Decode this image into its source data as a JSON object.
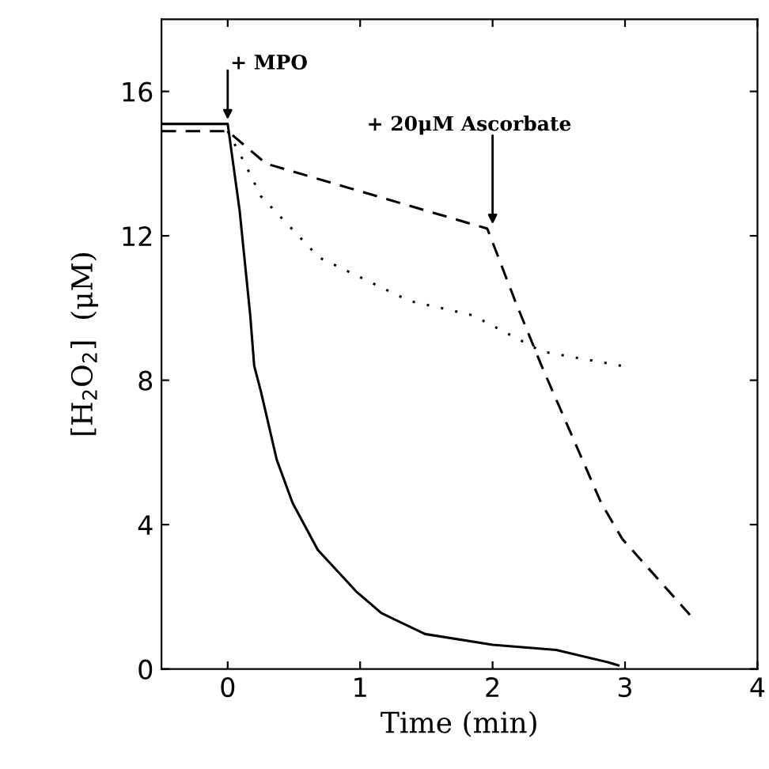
{
  "chart_data": {
    "type": "line",
    "xlabel": "Time (min)",
    "ylabel": "[H$_{2}$O$_{2}$]  (μM)",
    "xlim": [
      -0.5,
      4
    ],
    "ylim": [
      0,
      18
    ],
    "xticks": [
      0,
      1,
      2,
      3,
      4
    ],
    "yticks": [
      0,
      4,
      8,
      12,
      16
    ],
    "grid": false,
    "legend": false,
    "marker": "none",
    "series": [
      {
        "color": "#000000",
        "line_style": "solid",
        "x": [
          -0.5,
          0,
          0.09,
          0.17,
          0.2,
          0.25,
          0.37,
          0.49,
          0.68,
          0.97,
          1.16,
          1.49,
          2.0,
          2.48,
          2.88,
          2.95
        ],
        "values": [
          15.1,
          15.1,
          12.7,
          9.8,
          8.4,
          7.7,
          5.8,
          4.6,
          3.3,
          2.15,
          1.55,
          0.97,
          0.67,
          0.53,
          0.18,
          0.1
        ]
      },
      {
        "color": "#000000",
        "line_style": "dashed",
        "x": [
          -0.5,
          0,
          0.29,
          1.96,
          2.17,
          2.37,
          2.82,
          2.98,
          3.49
        ],
        "values": [
          14.9,
          14.9,
          14.0,
          12.2,
          10.2,
          8.4,
          4.6,
          3.6,
          1.5
        ]
      },
      {
        "color": "#000000",
        "line_style": "dotted",
        "x": [
          0,
          0.13,
          0.25,
          0.69,
          1.37,
          1.85,
          2.37,
          2.97
        ],
        "values": [
          14.9,
          14.0,
          13.1,
          11.4,
          10.2,
          9.8,
          8.8,
          8.4
        ]
      }
    ],
    "annotations": [
      {
        "text": "+ MPO",
        "x": 0,
        "y": 15.1
      },
      {
        "text": "+ 20μM Ascorbate",
        "x": 2,
        "y": 12.2
      }
    ]
  }
}
